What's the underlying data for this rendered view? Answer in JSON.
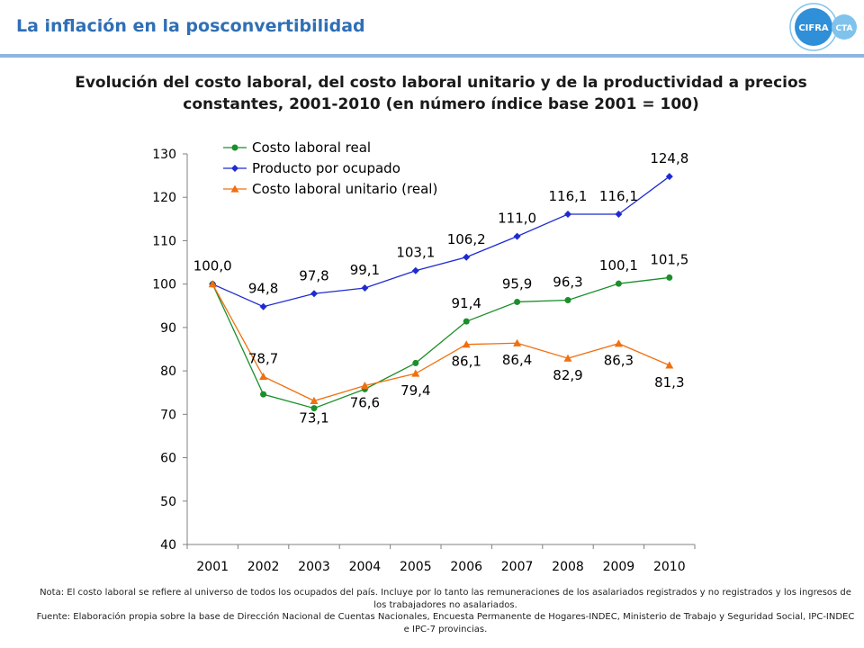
{
  "header": {
    "title": "La inflación en la posconvertibilidad"
  },
  "logo": {
    "left_text": "CIFRA",
    "right_text": "CTA",
    "colors": {
      "dark": "#2f8fd8",
      "light": "#7fc3ec"
    }
  },
  "chart_data": {
    "type": "line",
    "title": "Evolución del costo laboral, del costo laboral unitario y de la productividad a precios constantes, 2001-2010 (en número índice base 2001 = 100)",
    "categories": [
      "2001",
      "2002",
      "2003",
      "2004",
      "2005",
      "2006",
      "2007",
      "2008",
      "2009",
      "2010"
    ],
    "ylim": [
      40,
      130
    ],
    "yticks": [
      40,
      50,
      60,
      70,
      80,
      90,
      100,
      110,
      120,
      130
    ],
    "grid": false,
    "legend_position": "top-left",
    "series": [
      {
        "name": "Costo laboral real",
        "color": "#1a8f2a",
        "marker": "circle",
        "values": [
          100.0,
          74.6,
          71.4,
          75.8,
          81.8,
          91.4,
          95.9,
          96.3,
          100.1,
          101.5
        ],
        "labels": [
          "",
          "",
          "",
          "",
          "",
          "91,4",
          "95,9",
          "96,3",
          "100,1",
          "101,5"
        ]
      },
      {
        "name": "Producto por ocupado",
        "color": "#1f2bd1",
        "marker": "diamond",
        "values": [
          100.0,
          94.8,
          97.8,
          99.1,
          103.1,
          106.2,
          111.0,
          116.1,
          116.1,
          124.8
        ],
        "labels": [
          "100,0",
          "94,8",
          "97,8",
          "99,1",
          "103,1",
          "106,2",
          "111,0",
          "116,1",
          "116,1",
          "124,8"
        ]
      },
      {
        "name": "Costo laboral unitario (real)",
        "color": "#f07010",
        "marker": "triangle",
        "values": [
          100.0,
          78.7,
          73.1,
          76.6,
          79.4,
          86.1,
          86.4,
          82.9,
          86.3,
          81.3
        ],
        "labels": [
          "",
          "78,7",
          "73,1",
          "76,6",
          "79,4",
          "86,1",
          "86,4",
          "82,9",
          "86,3",
          "81,3"
        ]
      }
    ]
  },
  "notes": {
    "nota": "Nota: El costo laboral se refiere al universo de todos los ocupados del país. Incluye por lo tanto las remuneraciones de los asalariados registrados y no registrados y los ingresos de los trabajadores no asalariados.",
    "fuente": "Fuente: Elaboración propia sobre la base de Dirección Nacional de Cuentas Nacionales, Encuesta Permanente de Hogares-INDEC, Ministerio de Trabajo y Seguridad Social, IPC-INDEC e IPC-7 provincias."
  }
}
